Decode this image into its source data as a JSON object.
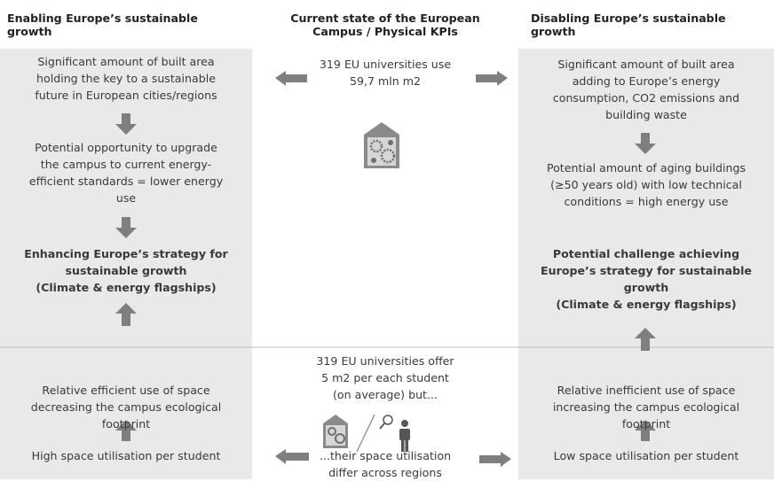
{
  "headers": {
    "left": [
      "Enabling Europe’s  sustainable",
      "growth"
    ],
    "center": [
      "Current state of the European",
      "Campus / Physical KPIs"
    ],
    "right": [
      "Disabling Europe’s sustainable",
      "growth"
    ]
  },
  "left": {
    "built_area": [
      "Significant amount of built area",
      "holding the key to a sustainable",
      "future in European cities/regions"
    ],
    "opportunity": [
      "Potential opportunity to upgrade",
      "the campus  to current energy-",
      "efficient standards = lower energy",
      "use"
    ],
    "strategy": [
      "Enhancing Europe’s strategy for",
      "sustainable growth",
      "(Climate & energy flagships)"
    ],
    "footprint": [
      "Relative efficient use of space",
      "decreasing the campus ecological",
      "footprint"
    ],
    "utilisation": [
      "High space utilisation per student"
    ]
  },
  "center": {
    "area": [
      "319 EU universities use",
      "59,7 mln m2"
    ],
    "offer": [
      "319 EU universities offer",
      "5 m2 per each student",
      "(on average) but..."
    ],
    "differ": [
      "...their space utilisation",
      "differ across regions"
    ]
  },
  "right": {
    "built_area": [
      "Significant amount of built area",
      "adding to Europe’s energy",
      "consumption, CO2 emissions and",
      "building waste"
    ],
    "aging": [
      "Potential amount of aging buildings",
      "(≥50 years old) with low technical",
      "conditions = high energy use"
    ],
    "challenge": [
      "Potential challenge achieving",
      "Europe’s strategy for  sustainable",
      "growth",
      "(Climate & energy  flagships)"
    ],
    "footprint": [
      "Relative inefficient use of space",
      "increasing the campus ecological",
      "footprint"
    ],
    "utilisation": [
      "Low space utilisation per student"
    ]
  }
}
